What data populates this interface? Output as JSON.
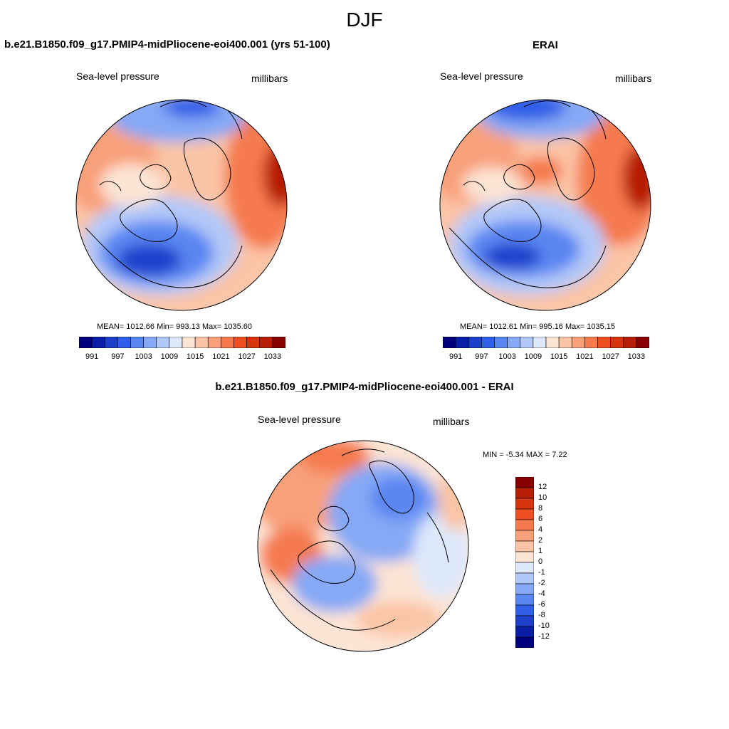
{
  "figure": {
    "title": "DJF"
  },
  "panels": [
    {
      "title": "b.e21.B1850.f09_g17.PMIP4-midPliocene-eoi400.001 (yrs 51-100)",
      "left_label": "Sea-level pressure",
      "right_label": "millibars",
      "stats": "MEAN= 1012.66  Min= 993.13  Max= 1035.60"
    },
    {
      "title": "ERAI",
      "left_label": "Sea-level pressure",
      "right_label": "millibars",
      "stats": "MEAN= 1012.61  Min= 995.16  Max= 1035.15"
    },
    {
      "title": "b.e21.B1850.f09_g17.PMIP4-midPliocene-eoi400.001 - ERAI",
      "left_label": "Sea-level pressure",
      "right_label": "millibars",
      "stats": "MIN =  -5.34 MAX =   7.22"
    }
  ],
  "colorbar_abs": {
    "colors": [
      "#00007f",
      "#0a1fa8",
      "#1c3fcc",
      "#2f5fe8",
      "#5a86f2",
      "#86a8f5",
      "#b2c8f8",
      "#dde8fb",
      "#fde4d4",
      "#fbc4a6",
      "#f8a07a",
      "#f57a4e",
      "#ee4f22",
      "#d8330f",
      "#b71e06",
      "#880000"
    ],
    "labels": [
      "991",
      "997",
      "1003",
      "1009",
      "1015",
      "1021",
      "1027",
      "1033"
    ],
    "levels": [
      991,
      994,
      997,
      1000,
      1003,
      1006,
      1009,
      1012,
      1015,
      1018,
      1021,
      1024,
      1027,
      1030,
      1033
    ]
  },
  "colorbar_diff": {
    "colors": [
      "#00007f",
      "#0a1fa8",
      "#1c3fcc",
      "#2f5fe8",
      "#5a86f2",
      "#86a8f5",
      "#b2c8f8",
      "#dde8fb",
      "#fde4d4",
      "#fbc4a6",
      "#f8a07a",
      "#f57a4e",
      "#ee4f22",
      "#d8330f",
      "#b71e06",
      "#880000"
    ],
    "labels": [
      "12",
      "10",
      "8",
      "6",
      "4",
      "2",
      "1",
      "0",
      "-1",
      "-2",
      "-4",
      "-6",
      "-8",
      "-10",
      "-12"
    ]
  }
}
